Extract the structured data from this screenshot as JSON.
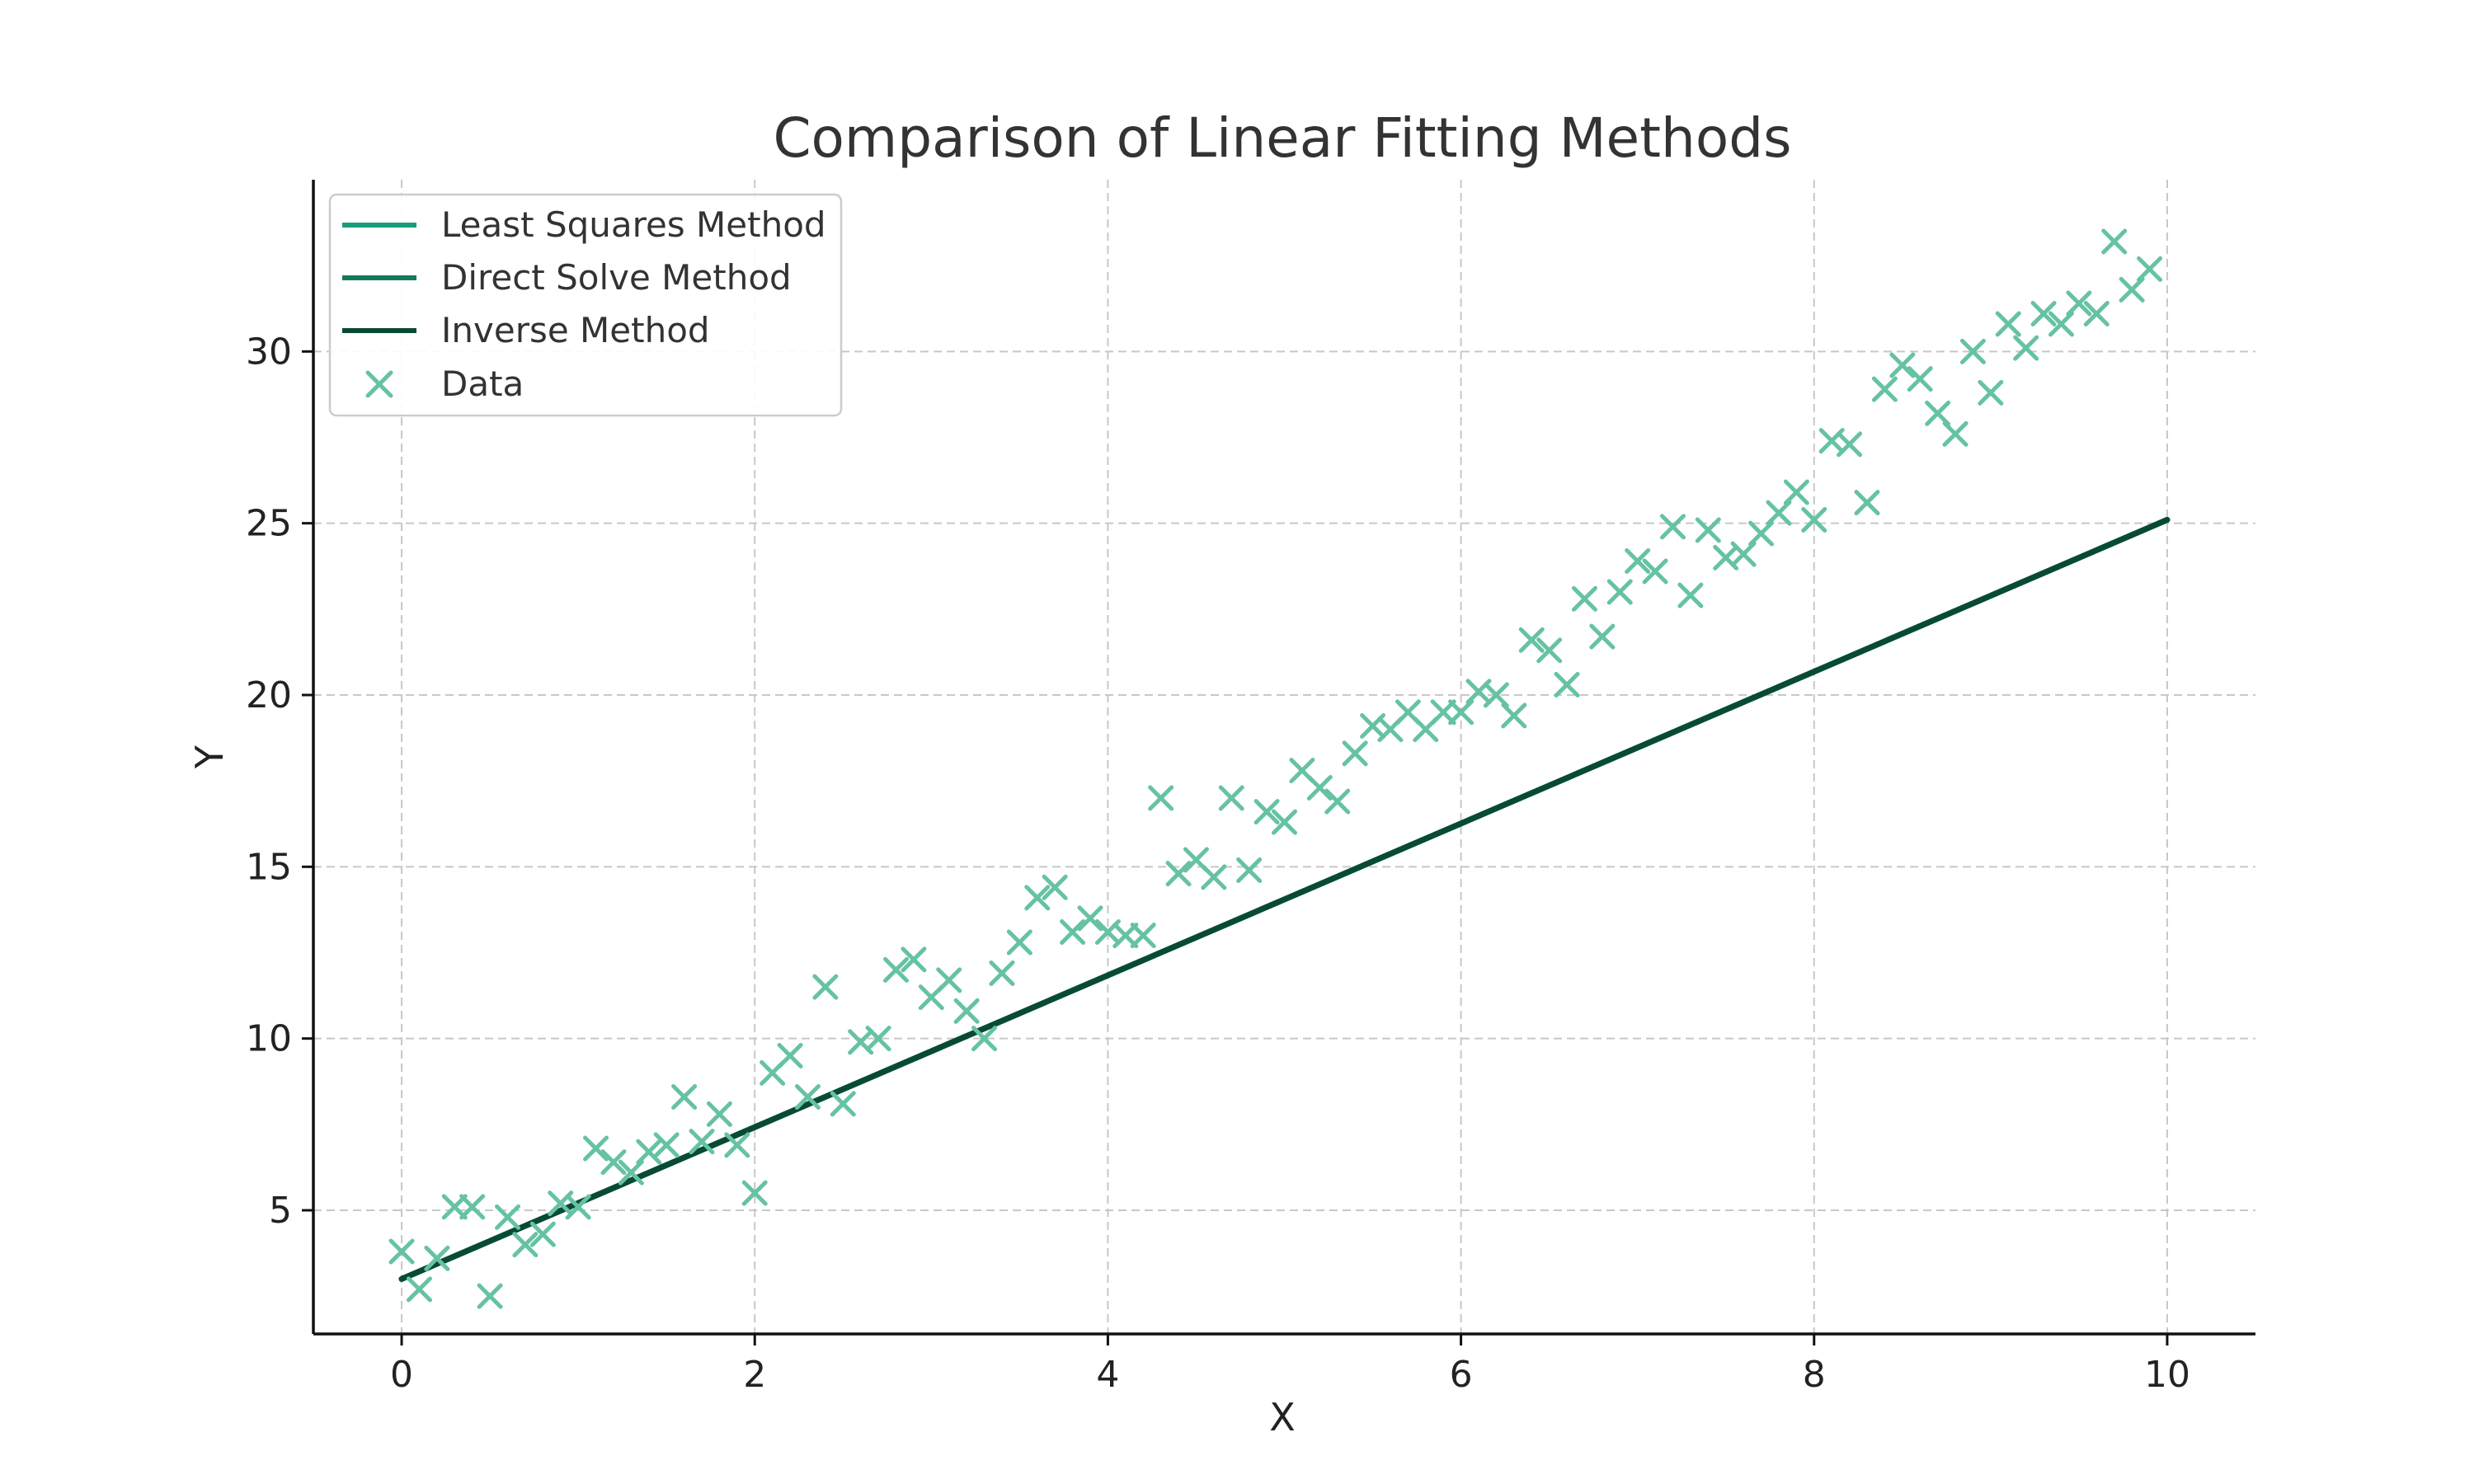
{
  "chart_data": {
    "type": "scatter",
    "title": "Comparison of Linear Fitting Methods",
    "xlabel": "X",
    "ylabel": "Y",
    "xlim": [
      -0.5,
      10.5
    ],
    "ylim": [
      1.4,
      35.0
    ],
    "xticks": [
      "0",
      "2",
      "4",
      "6",
      "8",
      "10"
    ],
    "xtick_values": [
      0,
      2,
      4,
      6,
      8,
      10
    ],
    "yticks": [
      "5",
      "10",
      "15",
      "20",
      "25",
      "30"
    ],
    "ytick_values": [
      5,
      10,
      15,
      20,
      25,
      30
    ],
    "grid": true,
    "legend_position": "top-left",
    "lines": [
      {
        "name": "Least Squares Method",
        "color": "#1a9c7a",
        "x": [
          0,
          10
        ],
        "y": [
          3.0,
          25.1
        ]
      },
      {
        "name": "Direct Solve Method",
        "color": "#137a5d",
        "x": [
          0,
          10
        ],
        "y": [
          3.0,
          25.1
        ]
      },
      {
        "name": "Inverse Method",
        "color": "#084a36",
        "x": [
          0,
          10
        ],
        "y": [
          3.0,
          25.1
        ]
      }
    ],
    "scatter": {
      "name": "Data",
      "color": "#66c2a4",
      "marker": "x",
      "points": [
        [
          0.0,
          3.8
        ],
        [
          0.1,
          2.7
        ],
        [
          0.2,
          3.6
        ],
        [
          0.3,
          5.1
        ],
        [
          0.4,
          5.1
        ],
        [
          0.5,
          2.5
        ],
        [
          0.6,
          4.8
        ],
        [
          0.7,
          4.0
        ],
        [
          0.8,
          4.3
        ],
        [
          0.9,
          5.2
        ],
        [
          1.0,
          5.1
        ],
        [
          1.1,
          6.8
        ],
        [
          1.2,
          6.4
        ],
        [
          1.3,
          6.1
        ],
        [
          1.4,
          6.7
        ],
        [
          1.5,
          6.9
        ],
        [
          1.6,
          8.3
        ],
        [
          1.7,
          7.0
        ],
        [
          1.8,
          7.8
        ],
        [
          1.9,
          6.9
        ],
        [
          2.0,
          5.5
        ],
        [
          2.1,
          9.0
        ],
        [
          2.2,
          9.5
        ],
        [
          2.3,
          8.3
        ],
        [
          2.4,
          11.5
        ],
        [
          2.5,
          8.1
        ],
        [
          2.6,
          9.9
        ],
        [
          2.7,
          10.0
        ],
        [
          2.8,
          12.0
        ],
        [
          2.9,
          12.3
        ],
        [
          3.0,
          11.2
        ],
        [
          3.1,
          11.7
        ],
        [
          3.2,
          10.8
        ],
        [
          3.3,
          10.0
        ],
        [
          3.4,
          11.9
        ],
        [
          3.5,
          12.8
        ],
        [
          3.6,
          14.1
        ],
        [
          3.7,
          14.4
        ],
        [
          3.8,
          13.1
        ],
        [
          3.9,
          13.5
        ],
        [
          4.0,
          13.1
        ],
        [
          4.1,
          13.0
        ],
        [
          4.2,
          13.0
        ],
        [
          4.3,
          17.0
        ],
        [
          4.4,
          14.8
        ],
        [
          4.5,
          15.2
        ],
        [
          4.6,
          14.7
        ],
        [
          4.7,
          17.0
        ],
        [
          4.8,
          14.9
        ],
        [
          4.9,
          16.6
        ],
        [
          5.0,
          16.3
        ],
        [
          5.1,
          17.8
        ],
        [
          5.2,
          17.3
        ],
        [
          5.3,
          16.9
        ],
        [
          5.4,
          18.3
        ],
        [
          5.5,
          19.1
        ],
        [
          5.6,
          19.0
        ],
        [
          5.7,
          19.5
        ],
        [
          5.8,
          19.0
        ],
        [
          5.9,
          19.5
        ],
        [
          6.0,
          19.5
        ],
        [
          6.1,
          20.1
        ],
        [
          6.2,
          20.0
        ],
        [
          6.3,
          19.4
        ],
        [
          6.4,
          21.6
        ],
        [
          6.5,
          21.3
        ],
        [
          6.6,
          20.3
        ],
        [
          6.7,
          22.8
        ],
        [
          6.8,
          21.7
        ],
        [
          6.9,
          23.0
        ],
        [
          7.0,
          23.9
        ],
        [
          7.1,
          23.6
        ],
        [
          7.2,
          24.9
        ],
        [
          7.3,
          22.9
        ],
        [
          7.4,
          24.8
        ],
        [
          7.5,
          24.0
        ],
        [
          7.6,
          24.1
        ],
        [
          7.7,
          24.7
        ],
        [
          7.8,
          25.3
        ],
        [
          7.9,
          25.9
        ],
        [
          8.0,
          25.1
        ],
        [
          8.1,
          27.4
        ],
        [
          8.2,
          27.3
        ],
        [
          8.3,
          25.6
        ],
        [
          8.4,
          28.9
        ],
        [
          8.5,
          29.6
        ],
        [
          8.6,
          29.2
        ],
        [
          8.7,
          28.2
        ],
        [
          8.8,
          27.6
        ],
        [
          8.9,
          30.0
        ],
        [
          9.0,
          28.8
        ],
        [
          9.1,
          30.8
        ],
        [
          9.2,
          30.1
        ],
        [
          9.3,
          31.1
        ],
        [
          9.4,
          30.8
        ],
        [
          9.5,
          31.4
        ],
        [
          9.6,
          31.1
        ],
        [
          9.7,
          33.2
        ],
        [
          9.8,
          31.8
        ],
        [
          9.9,
          32.4
        ]
      ]
    }
  }
}
